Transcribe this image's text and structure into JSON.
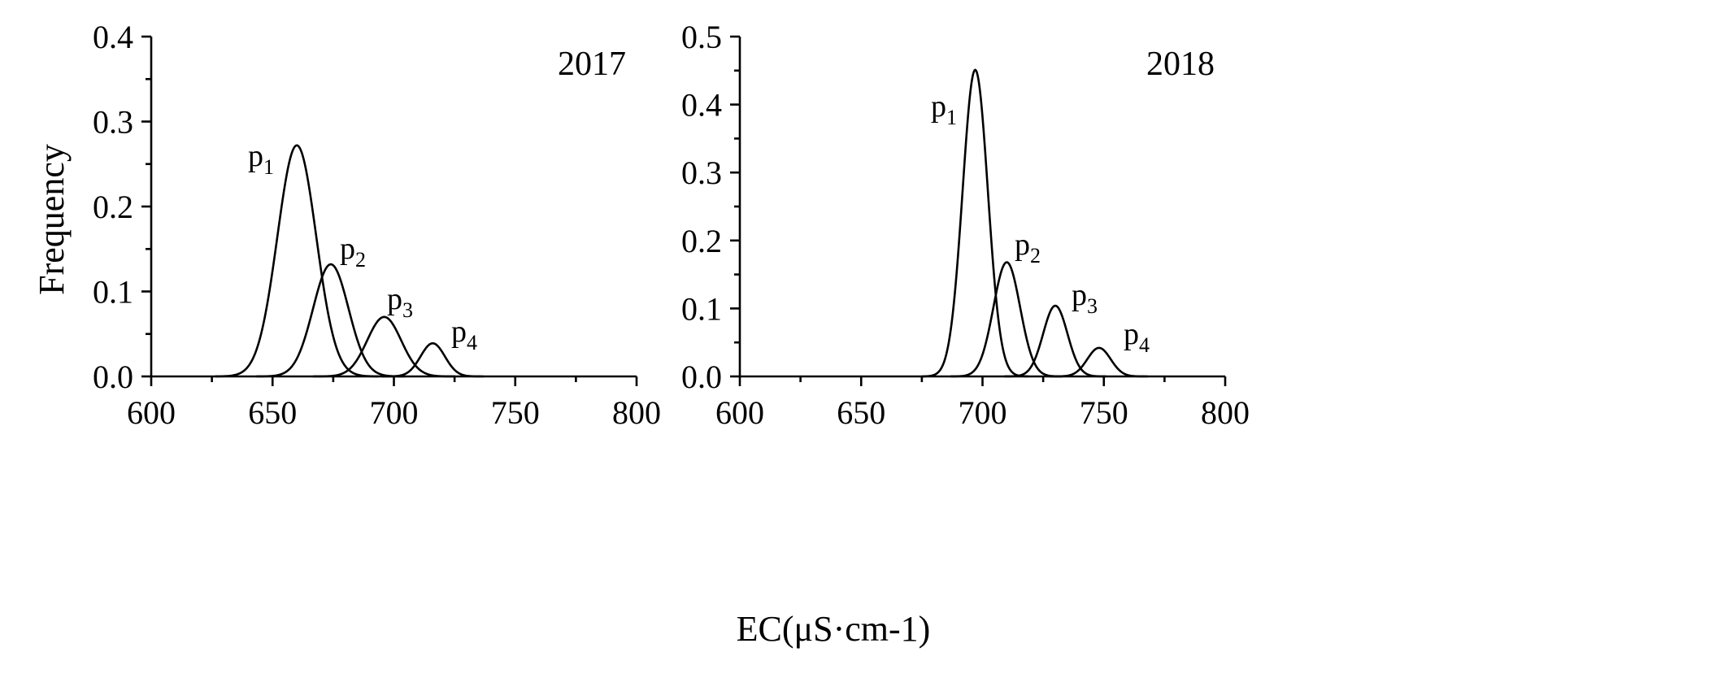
{
  "y_axis_label": "Frequency",
  "x_axis_label": "EC(μS·cm-1)",
  "colors": {
    "background": "#ffffff",
    "ink": "#000000"
  },
  "chart_data": [
    {
      "type": "line",
      "panel_label": "2017",
      "xlim": [
        600,
        800
      ],
      "ylim": [
        0,
        0.4
      ],
      "x_ticks": [
        600,
        650,
        700,
        750,
        800
      ],
      "x_tick_labels": [
        "600",
        "650",
        "700",
        "750",
        "800"
      ],
      "x_minor_step": 25,
      "y_ticks": [
        0.0,
        0.1,
        0.2,
        0.3,
        0.4
      ],
      "y_tick_labels": [
        "0.0",
        "0.1",
        "0.2",
        "0.3",
        "0.4"
      ],
      "y_minor_step": 0.05,
      "grid": false,
      "series": [
        {
          "name": "p1",
          "base": "p",
          "sub": "1",
          "center": 660,
          "sigma": 8.0,
          "peak": 0.272
        },
        {
          "name": "p2",
          "base": "p",
          "sub": "2",
          "center": 674,
          "sigma": 7.3,
          "peak": 0.132
        },
        {
          "name": "p3",
          "base": "p",
          "sub": "3",
          "center": 696,
          "sigma": 7.0,
          "peak": 0.07
        },
        {
          "name": "p4",
          "base": "p",
          "sub": "4",
          "center": 716,
          "sigma": 5.0,
          "peak": 0.039
        }
      ]
    },
    {
      "type": "line",
      "panel_label": "2018",
      "xlim": [
        600,
        800
      ],
      "ylim": [
        0,
        0.5
      ],
      "x_ticks": [
        600,
        650,
        700,
        750,
        800
      ],
      "x_tick_labels": [
        "600",
        "650",
        "700",
        "750",
        "800"
      ],
      "x_minor_step": 25,
      "y_ticks": [
        0.0,
        0.1,
        0.2,
        0.3,
        0.4,
        0.5
      ],
      "y_tick_labels": [
        "0.0",
        "0.1",
        "0.2",
        "0.3",
        "0.4",
        "0.5"
      ],
      "y_minor_step": 0.05,
      "grid": false,
      "series": [
        {
          "name": "p1",
          "base": "p",
          "sub": "1",
          "center": 697,
          "sigma": 5.2,
          "peak": 0.451
        },
        {
          "name": "p2",
          "base": "p",
          "sub": "2",
          "center": 710,
          "sigma": 5.5,
          "peak": 0.168
        },
        {
          "name": "p3",
          "base": "p",
          "sub": "3",
          "center": 730,
          "sigma": 5.0,
          "peak": 0.104
        },
        {
          "name": "p4",
          "base": "p",
          "sub": "4",
          "center": 748,
          "sigma": 4.8,
          "peak": 0.042
        }
      ]
    }
  ]
}
